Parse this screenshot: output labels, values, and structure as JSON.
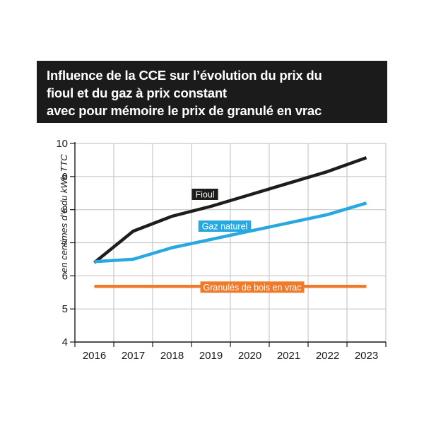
{
  "title": {
    "line1": "Influence de la CCE sur l’évolution du prix du",
    "line2": "fioul et du gaz à prix constant",
    "line3": "avec pour mémoire le prix de granulé en vrac"
  },
  "chart_data": {
    "type": "line",
    "title": "Influence de la CCE sur l’évolution du prix du fioul et du gaz à prix constant avec pour mémoire le prix de granulé en vrac",
    "ylabel": "en centimes d’€ du kWh TTC",
    "xlabel": "",
    "x": [
      "2016",
      "2017",
      "2018",
      "2019",
      "2020",
      "2021",
      "2022",
      "2023"
    ],
    "yticks": [
      "4",
      "5",
      "6",
      "7",
      "8",
      "9",
      "10"
    ],
    "ylim": [
      4,
      10
    ],
    "grid": true,
    "series": [
      {
        "name": "Fioul",
        "color": "#1d1d1b",
        "values": [
          6.4,
          7.35,
          7.8,
          8.1,
          8.45,
          8.8,
          9.15,
          9.57
        ]
      },
      {
        "name": "Gaz naturel",
        "color": "#27a8e0",
        "values": [
          6.43,
          6.5,
          6.85,
          7.1,
          7.35,
          7.6,
          7.85,
          8.2
        ]
      },
      {
        "name": "Granulés de bois en vrac",
        "color": "#f07a28",
        "values": [
          5.68,
          5.68,
          5.68,
          5.68,
          5.68,
          5.68,
          5.68,
          5.68
        ]
      }
    ]
  }
}
